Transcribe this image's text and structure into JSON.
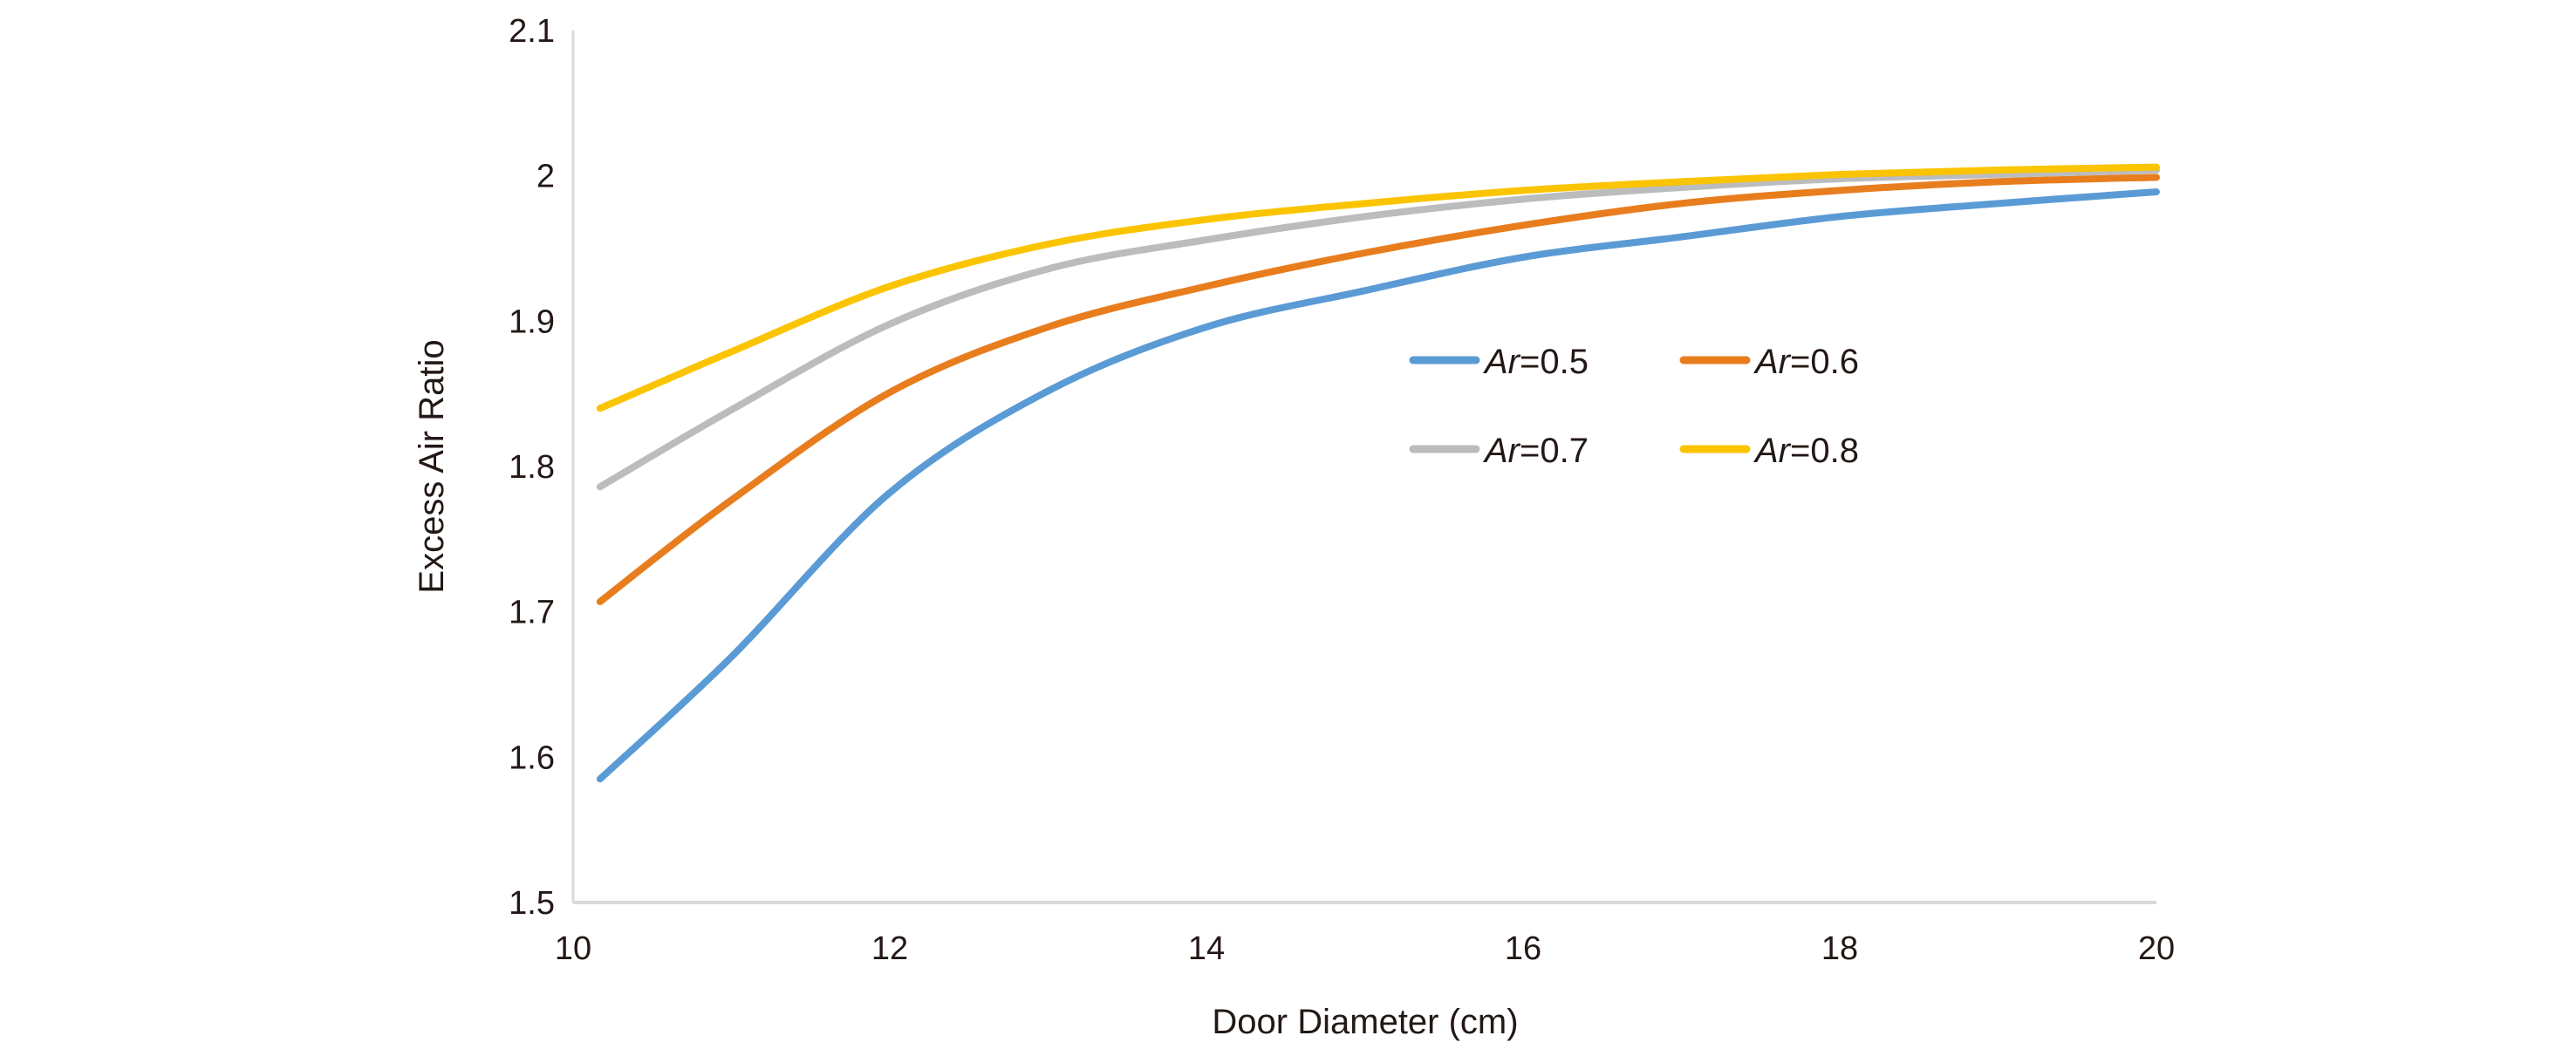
{
  "chart_data": {
    "type": "line",
    "title": "",
    "xlabel": "Door Diameter (cm)",
    "ylabel": "Excess Air Ratio",
    "xlim": [
      10,
      20
    ],
    "ylim": [
      1.5,
      2.1
    ],
    "xticks": [
      "10",
      "12",
      "14",
      "16",
      "18",
      "20"
    ],
    "yticks": [
      "1.5",
      "1.6",
      "1.7",
      "1.8",
      "1.9",
      "2",
      "2.1"
    ],
    "grid": false,
    "legend_position": "center-right",
    "x": [
      10.17,
      11,
      12,
      13,
      14,
      15,
      16,
      17,
      18,
      19,
      20
    ],
    "series": [
      {
        "name": "Ar=0.5",
        "prefix": "Ar",
        "suffix": "=0.5",
        "color": "#5b9bd5",
        "values": [
          1.585,
          1.669,
          1.782,
          1.852,
          1.896,
          1.921,
          1.944,
          1.958,
          1.972,
          1.981,
          1.989
        ]
      },
      {
        "name": "Ar=0.6",
        "prefix": "Ar",
        "suffix": "=0.6",
        "color": "#e87d1e",
        "values": [
          1.707,
          1.777,
          1.851,
          1.896,
          1.924,
          1.947,
          1.966,
          1.981,
          1.99,
          1.996,
          1.999
        ]
      },
      {
        "name": "Ar=0.7",
        "prefix": "Ar",
        "suffix": "=0.7",
        "color": "#bbbcbe",
        "values": [
          1.786,
          1.839,
          1.898,
          1.936,
          1.956,
          1.972,
          1.984,
          1.992,
          1.998,
          2.001,
          2.004
        ]
      },
      {
        "name": "Ar=0.8",
        "prefix": "Ar",
        "suffix": "=0.8",
        "color": "#fbc400",
        "values": [
          1.84,
          1.879,
          1.924,
          1.953,
          1.97,
          1.981,
          1.99,
          1.996,
          2.001,
          2.004,
          2.006
        ]
      }
    ]
  }
}
